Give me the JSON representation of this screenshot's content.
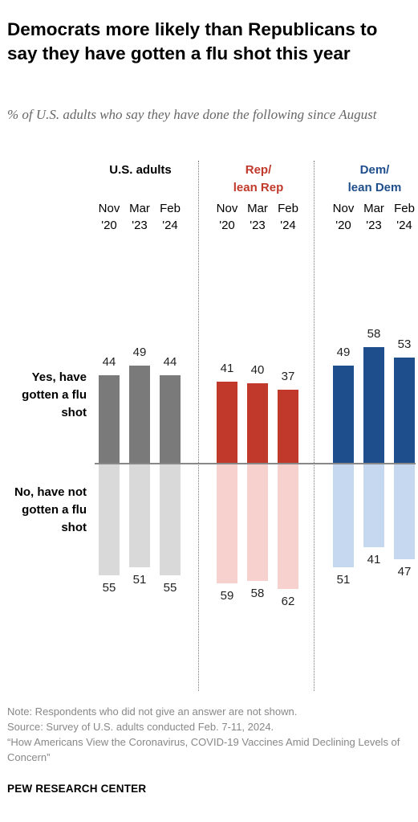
{
  "title": "Democrats more likely than Republicans to say they have gotten a flu shot this year",
  "subtitle": "% of U.S. adults who say they have done the following since August",
  "row_labels": {
    "yes": "Yes, have gotten a flu shot",
    "no": "No, have not gotten a flu shot"
  },
  "notes": {
    "note": "Note: Respondents who did not give an answer are not shown.",
    "source": "Source: Survey of U.S. adults conducted Feb. 7-11, 2024.",
    "report": "“How Americans View the Coronavirus, COVID-19 Vaccines Amid Declining Levels of Concern”"
  },
  "footer": "PEW RESEARCH CENTER",
  "chart_data": {
    "type": "bar",
    "periods": [
      "Nov '20",
      "Mar '23",
      "Feb '24"
    ],
    "groups": [
      {
        "name": "U.S. adults",
        "yes": [
          44,
          49,
          44
        ],
        "no": [
          55,
          51,
          55
        ],
        "colors": {
          "label": "#000000",
          "yes": "#7a7a7a",
          "no": "#d9d9d9"
        }
      },
      {
        "name": "Rep/ lean Rep",
        "yes": [
          41,
          40,
          37
        ],
        "no": [
          59,
          58,
          62
        ],
        "colors": {
          "label": "#c0392b",
          "yes": "#c0392b",
          "no": "#f6d1cd"
        }
      },
      {
        "name": "Dem/ lean Dem",
        "yes": [
          49,
          58,
          53
        ],
        "no": [
          51,
          41,
          47
        ],
        "colors": {
          "label": "#1f4e8c",
          "yes": "#1f4e8c",
          "no": "#c5d8f0"
        }
      }
    ],
    "ylim": [
      0,
      100
    ]
  }
}
